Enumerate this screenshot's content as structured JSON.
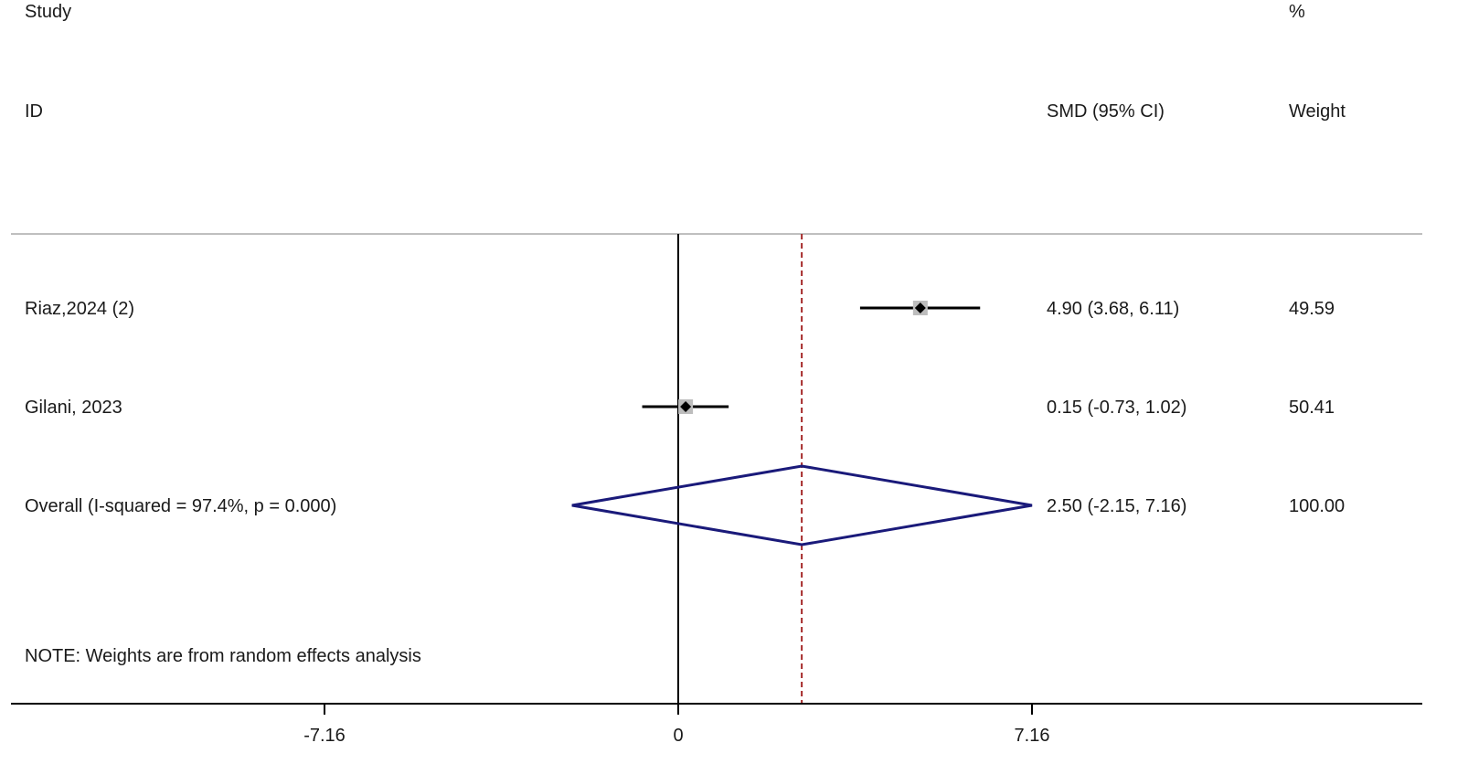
{
  "chart_data": {
    "type": "forest",
    "header": {
      "study_top": "Study",
      "study_bottom": "ID",
      "effect_label": "SMD (95% CI)",
      "weight_top": "%",
      "weight_bottom": "Weight"
    },
    "studies": [
      {
        "id": "Riaz,2024 (2)",
        "smd": 4.9,
        "ci": [
          3.68,
          6.11
        ],
        "ci_text": "4.90 (3.68, 6.11)",
        "weight": "49.59"
      },
      {
        "id": "Gilani, 2023",
        "smd": 0.15,
        "ci": [
          -0.73,
          1.02
        ],
        "ci_text": "0.15 (-0.73, 1.02)",
        "weight": "50.41"
      }
    ],
    "overall": {
      "label": "Overall  (I-squared = 97.4%, p = 0.000)",
      "smd": 2.5,
      "ci": [
        -2.15,
        7.16
      ],
      "ci_text": "2.50 (-2.15, 7.16)",
      "weight": "100.00"
    },
    "note": "NOTE: Weights are from random effects analysis",
    "x_ticks": [
      -7.16,
      0,
      7.16
    ],
    "x_tick_labels": [
      "-7.16",
      "0",
      "7.16"
    ],
    "colors": {
      "ci_line": "#000000",
      "weight_box": "#bdbdbd",
      "overall_diamond": "#1a1a7a",
      "overall_dashed": "#a52a2a",
      "null_line": "#000000",
      "separator": "#bfbfbf"
    }
  }
}
